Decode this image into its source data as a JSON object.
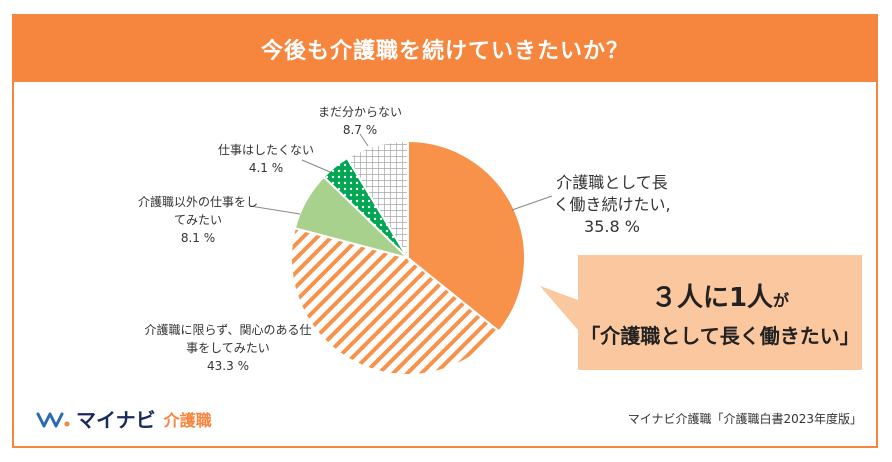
{
  "title": "今後も介護職を続けていきたいか？",
  "chart_data": {
    "type": "pie",
    "title": "今後も介護職を続けていきたいか？",
    "slices": [
      {
        "label": "介護職として長く働き続けたい,",
        "value": 35.8,
        "value_text": "35.8 %",
        "color": "#F8914A",
        "pattern": "solid"
      },
      {
        "label": "介護職に限らず、関心のある仕事をしてみたい",
        "value": 43.3,
        "value_text": "43.3 %",
        "color": "#F8914A",
        "pattern": "diagonal"
      },
      {
        "label": "介護職以外の仕事をしてみたい",
        "value": 8.1,
        "value_text": "8.1 %",
        "color": "#A9D18E",
        "pattern": "solid"
      },
      {
        "label": "仕事はしたくない",
        "value": 4.1,
        "value_text": "4.1 %",
        "color": "#00A651",
        "pattern": "dots"
      },
      {
        "label": "まだ分からない",
        "value": 8.7,
        "value_text": "8.7 %",
        "color": "#BFBFBF",
        "pattern": "grid"
      }
    ]
  },
  "callout": {
    "line1_a": "３人に",
    "line1_b": "1人",
    "line1_c": "が",
    "line2": "「介護職として長く働きたい」"
  },
  "labels": {
    "s0_l1": "介護職として長",
    "s0_l2": "く働き続けたい,",
    "s1_l1": "介護職に限らず、関心のある仕",
    "s1_l2": "事をしてみたい",
    "s2_l1": "介護職以外の仕事をし",
    "s2_l2": "てみたい",
    "s3_l1": "仕事はしたくない",
    "s4_l1": "まだ分からない"
  },
  "logo": {
    "name": "マイナビ",
    "sub": "介護職"
  },
  "source": "マイナビ介護職「介護職白書2023年度版」"
}
